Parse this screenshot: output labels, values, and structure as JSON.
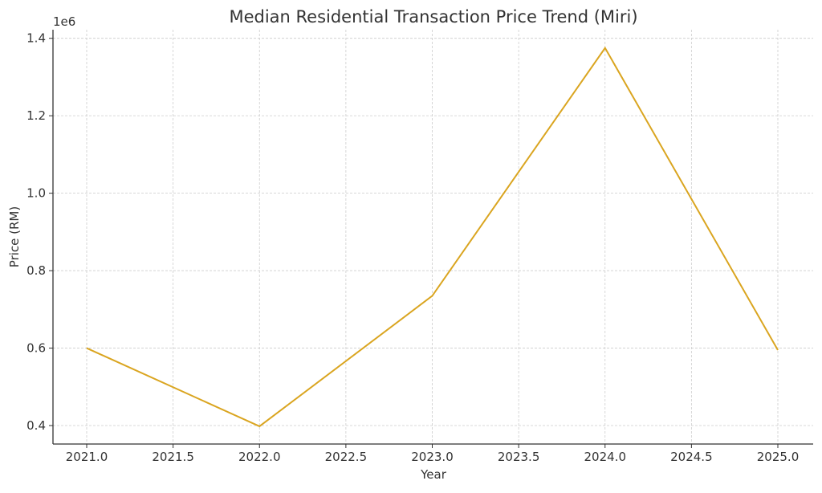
{
  "chart_data": {
    "type": "line",
    "title": "Median Residential Transaction Price Trend (Miri)",
    "xlabel": "Year",
    "ylabel": "Price (RM)",
    "y_offset_label": "1e6",
    "xlim": [
      2020.8,
      2025.2
    ],
    "ylim": [
      350000,
      1425000
    ],
    "grid": true,
    "x_ticks": [
      2021.0,
      2021.5,
      2022.0,
      2022.5,
      2023.0,
      2023.5,
      2024.0,
      2024.5,
      2025.0
    ],
    "x_tick_labels": [
      "2021.0",
      "2021.5",
      "2022.0",
      "2022.5",
      "2023.0",
      "2023.5",
      "2024.0",
      "2024.5",
      "2025.0"
    ],
    "y_ticks": [
      400000,
      600000,
      800000,
      1000000,
      1200000,
      1400000
    ],
    "y_tick_labels": [
      "0.4",
      "0.6",
      "0.8",
      "1.0",
      "1.2",
      "1.4"
    ],
    "series": [
      {
        "x": [
          2021,
          2022,
          2023,
          2024,
          2025
        ],
        "values": [
          600000,
          398000,
          735000,
          1375000,
          595000
        ],
        "color": "#DAA520"
      }
    ]
  }
}
